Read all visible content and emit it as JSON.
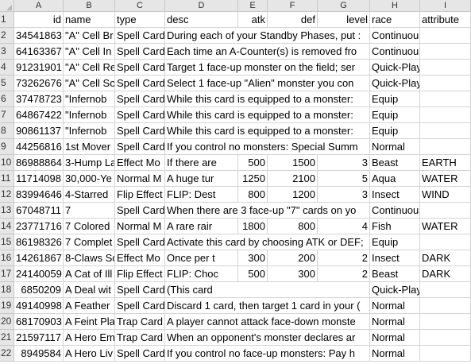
{
  "columns": [
    "A",
    "B",
    "C",
    "D",
    "E",
    "F",
    "G",
    "H",
    "I"
  ],
  "header_row": [
    "id",
    "name",
    "type",
    "desc",
    "atk",
    "def",
    "level",
    "race",
    "attribute"
  ],
  "rows": [
    {
      "num": "2",
      "cells": [
        "34541863",
        "\"A\" Cell Br",
        "Spell Card",
        "During each of your Standby Phases, put :",
        "",
        "",
        "",
        "Continuous",
        ""
      ]
    },
    {
      "num": "3",
      "cells": [
        "64163367",
        "\"A\" Cell In",
        "Spell Card",
        "Each time an A-Counter(s) is removed fro",
        "",
        "",
        "",
        "Continuous",
        ""
      ]
    },
    {
      "num": "4",
      "cells": [
        "91231901",
        "\"A\" Cell Re",
        "Spell Card",
        "Target 1 face-up monster on the field; ser",
        "",
        "",
        "",
        "Quick-Play",
        ""
      ]
    },
    {
      "num": "5",
      "cells": [
        "73262676",
        "\"A\" Cell Sc",
        "Spell Card",
        "Select 1 face-up \"Alien\" monster you con",
        "",
        "",
        "",
        "Quick-Play",
        ""
      ]
    },
    {
      "num": "6",
      "cells": [
        "37478723",
        "\"Infernob",
        "Spell Card",
        "While this card is equipped to a monster:",
        "",
        "",
        "",
        "Equip",
        ""
      ]
    },
    {
      "num": "7",
      "cells": [
        "64867422",
        "\"Infernob",
        "Spell Card",
        "While this card is equipped to a monster:",
        "",
        "",
        "",
        "Equip",
        ""
      ]
    },
    {
      "num": "8",
      "cells": [
        "90861137",
        "\"Infernob",
        "Spell Card",
        "While this card is equipped to a monster:",
        "",
        "",
        "",
        "Equip",
        ""
      ]
    },
    {
      "num": "9",
      "cells": [
        "44256816",
        "1st Mover",
        "Spell Card",
        "If you control no monsters: Special Summ",
        "",
        "",
        "",
        "Normal",
        ""
      ]
    },
    {
      "num": "10",
      "cells": [
        "86988864",
        "3-Hump La",
        "Effect Mo",
        "If there are",
        "500",
        "1500",
        "3",
        "Beast",
        "EARTH"
      ]
    },
    {
      "num": "11",
      "cells": [
        "11714098",
        "30,000-Ye",
        "Normal M",
        "A huge tur",
        "1250",
        "2100",
        "5",
        "Aqua",
        "WATER"
      ]
    },
    {
      "num": "12",
      "cells": [
        "83994646",
        "4-Starred",
        "Flip Effect",
        "FLIP: Dest",
        "800",
        "1200",
        "3",
        "Insect",
        "WIND"
      ]
    },
    {
      "num": "13",
      "cells": [
        "67048711",
        "7",
        "Spell Card",
        "When there are 3 face-up \"7\" cards on yo",
        "",
        "",
        "",
        "Continuous",
        ""
      ]
    },
    {
      "num": "14",
      "cells": [
        "23771716",
        "7 Colored",
        "Normal M",
        "A rare rair",
        "1800",
        "800",
        "4",
        "Fish",
        "WATER"
      ]
    },
    {
      "num": "15",
      "cells": [
        "86198326",
        "7 Complet",
        "Spell Card",
        "Activate this card by choosing ATK or DEF;",
        "",
        "",
        "",
        "Equip",
        ""
      ]
    },
    {
      "num": "16",
      "cells": [
        "14261867",
        "8-Claws Sc",
        "Effect Mo",
        "Once per t",
        "300",
        "200",
        "2",
        "Insect",
        "DARK"
      ]
    },
    {
      "num": "17",
      "cells": [
        "24140059",
        "A Cat of Ill",
        "Flip Effect",
        "FLIP: Choc",
        "500",
        "300",
        "2",
        "Beast",
        "DARK"
      ]
    },
    {
      "num": "18",
      "cells": [
        "6850209",
        "A Deal wit",
        "Spell Card",
        "(This card",
        "",
        "",
        "",
        "Quick-Play",
        ""
      ]
    },
    {
      "num": "19",
      "cells": [
        "49140998",
        "A Feather",
        "Spell Card",
        "Discard 1 card, then target 1 card in your (",
        "",
        "",
        "",
        "Normal",
        ""
      ]
    },
    {
      "num": "20",
      "cells": [
        "68170903",
        "A Feint Pla",
        "Trap Card",
        "A player cannot attack face-down monste",
        "",
        "",
        "",
        "Normal",
        ""
      ]
    },
    {
      "num": "21",
      "cells": [
        "21597117",
        "A Hero Em",
        "Trap Card",
        "When an opponent's monster declares ar",
        "",
        "",
        "",
        "Normal",
        ""
      ]
    },
    {
      "num": "22",
      "cells": [
        "8949584",
        "A Hero Liv",
        "Spell Card",
        "If you control no face-up monsters: Pay h",
        "",
        "",
        "",
        "Normal",
        ""
      ]
    }
  ]
}
